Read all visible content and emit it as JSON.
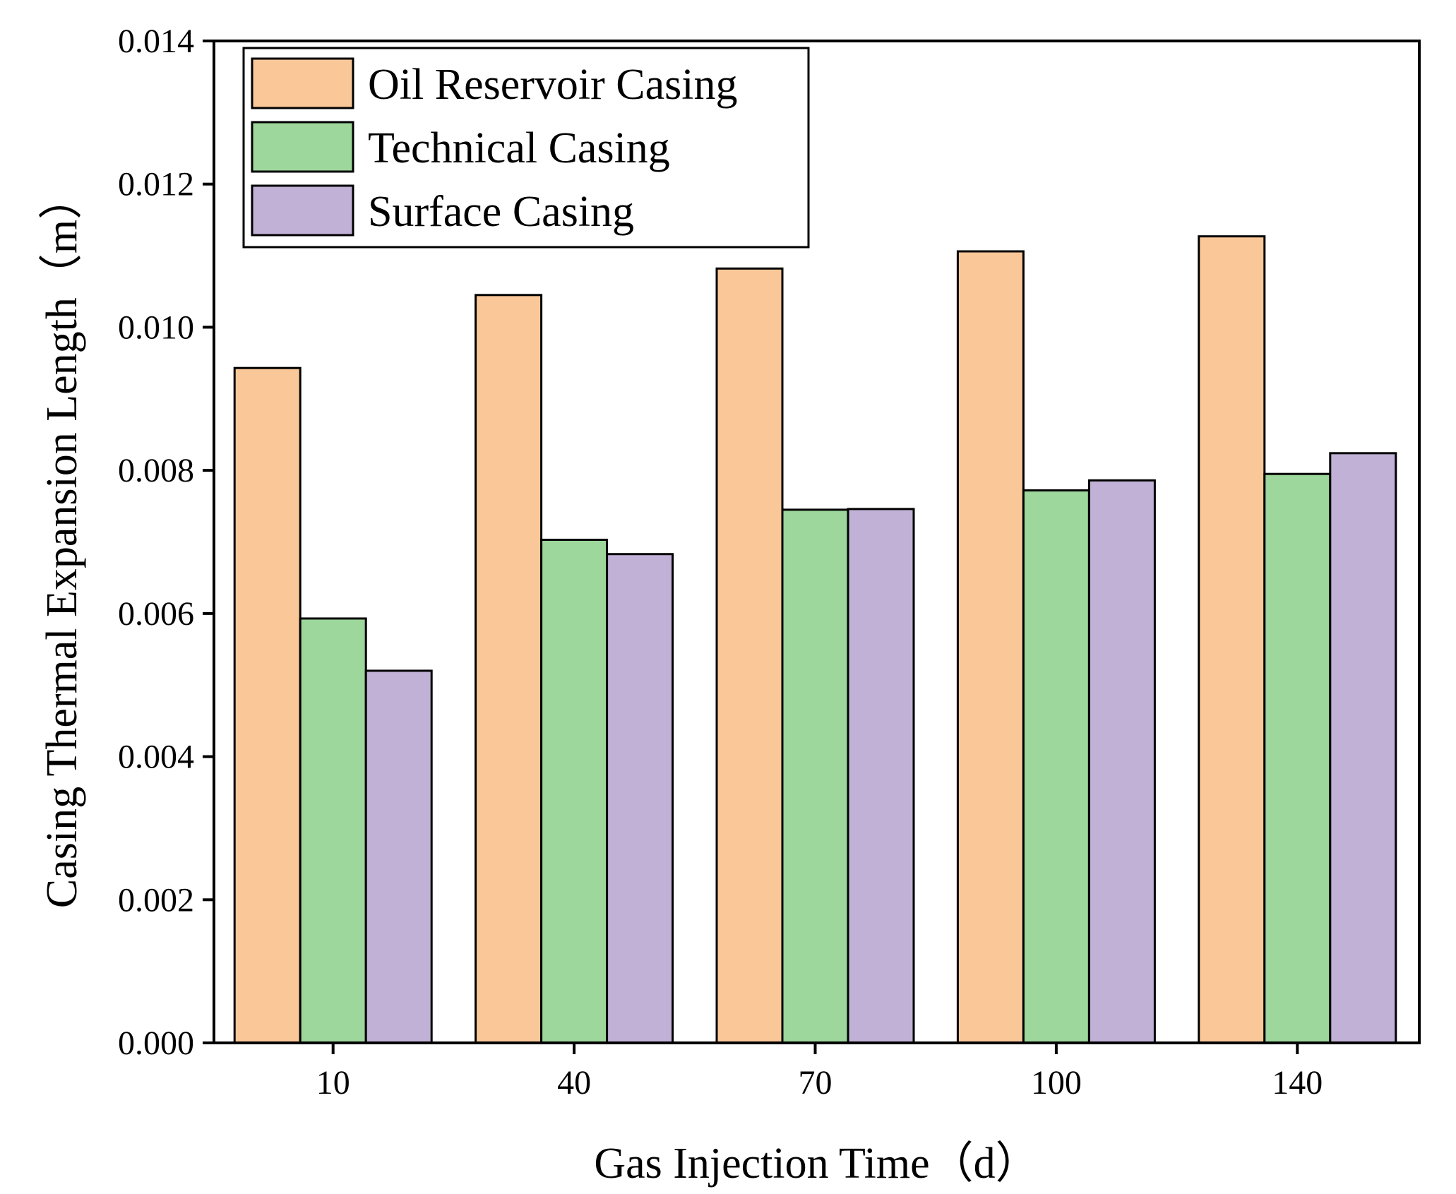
{
  "chart_data": {
    "type": "bar",
    "title": "",
    "xlabel": "Gas Injection Time（d）",
    "ylabel": "Casing Thermal Expansion Length（m）",
    "categories": [
      "10",
      "40",
      "70",
      "100",
      "140"
    ],
    "ylim": [
      0,
      0.014
    ],
    "yticks": [
      0.0,
      0.002,
      0.004,
      0.006,
      0.008,
      0.01,
      0.012,
      0.014
    ],
    "ytick_labels": [
      "0.000",
      "0.002",
      "0.004",
      "0.006",
      "0.008",
      "0.010",
      "0.012",
      "0.014"
    ],
    "grid": false,
    "legend_position": "top-left",
    "series": [
      {
        "name": "Oil Reservoir Casing",
        "color": "#FAC898",
        "values": [
          0.00943,
          0.01045,
          0.01082,
          0.01106,
          0.01127
        ]
      },
      {
        "name": "Technical Casing",
        "color": "#9DD79B",
        "values": [
          0.00593,
          0.00703,
          0.00745,
          0.00772,
          0.00795
        ]
      },
      {
        "name": "Surface Casing",
        "color": "#C1B1D7",
        "values": [
          0.0052,
          0.00683,
          0.00746,
          0.00786,
          0.00824
        ]
      }
    ]
  }
}
